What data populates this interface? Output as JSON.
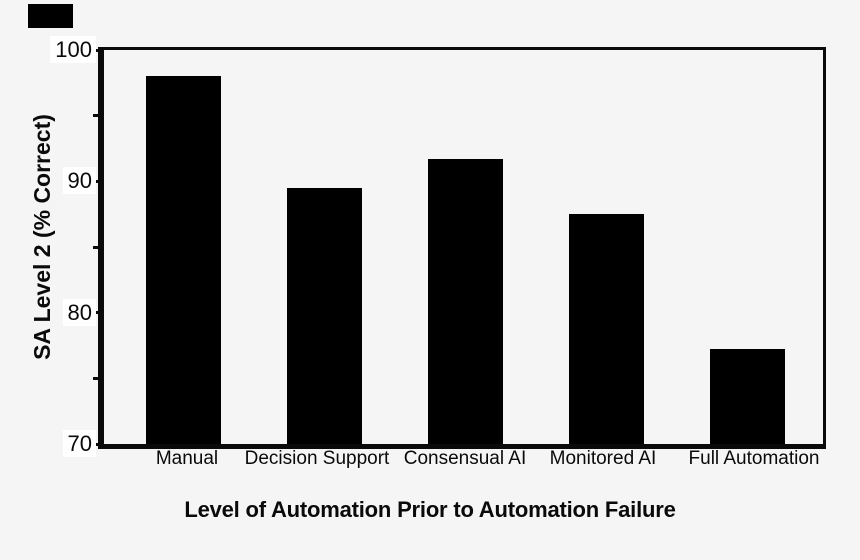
{
  "chart_data": {
    "type": "bar",
    "title": "",
    "xlabel": "Level of Automation Prior to Automation Failure",
    "ylabel": "SA Level 2 (% Correct)",
    "categories": [
      "Manual",
      "Decision Support",
      "Consensual AI",
      "Monitored AI",
      "Full Automation"
    ],
    "values": [
      98,
      89.5,
      91.7,
      87.5,
      77.2
    ],
    "ylim": [
      70,
      100
    ],
    "yticks_major": [
      100,
      90,
      80,
      70
    ],
    "yticks_minor": [
      95,
      85,
      75
    ],
    "grid": false,
    "legend": false,
    "bar_color": "#000000",
    "frame_color": "#0a0a0a",
    "background_color": "#f5f5f5",
    "tick_label_background": "#ffffff"
  }
}
